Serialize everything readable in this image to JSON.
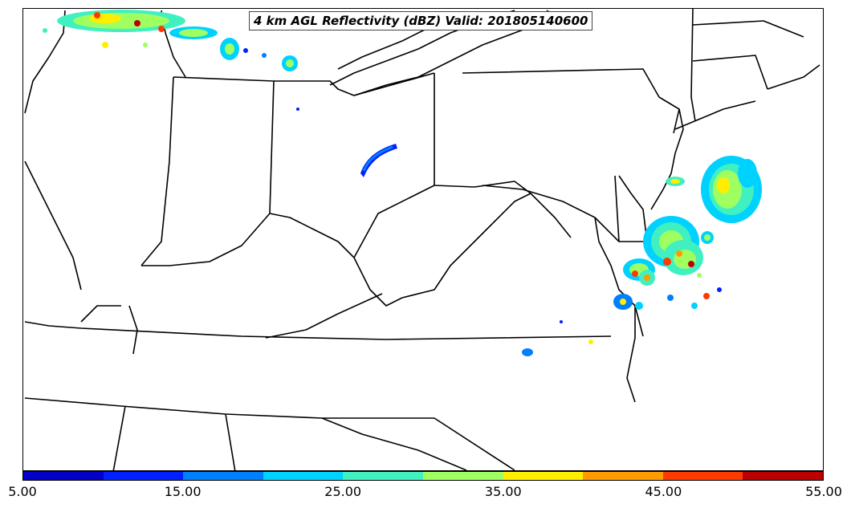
{
  "title": "4 km AGL Reflectivity (dBZ) Valid: 201805140600",
  "colorbar": {
    "colors": [
      "#0000c8",
      "#0020ff",
      "#0080ff",
      "#00d2ff",
      "#40f0c0",
      "#a0ff60",
      "#ffee00",
      "#ff9a00",
      "#ff3a00",
      "#bb0000"
    ],
    "tick_labels": [
      "5.00",
      "15.00",
      "25.00",
      "35.00",
      "45.00",
      "55.00"
    ]
  },
  "icons": {
    "map": "state-boundaries-map",
    "echo": "radar-echo-blob"
  }
}
